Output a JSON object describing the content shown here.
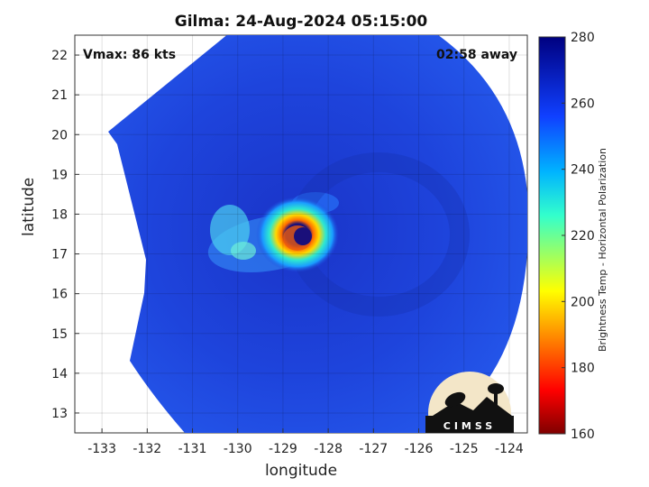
{
  "title": "Gilma: 24-Aug-2024 05:15:00",
  "vmax_label": "Vmax: 86 kts",
  "time_away_label": "02:58 away",
  "logo_text": "CIMSS",
  "colors": {
    "background": "#1c3fe0",
    "eye": "#1a0f7a"
  },
  "chart_data": {
    "type": "heatmap",
    "xlabel": "longitude",
    "ylabel": "latitude",
    "xlim": [
      -133.6,
      -123.6
    ],
    "ylim": [
      12.5,
      22.5
    ],
    "xticks": [
      -133,
      -132,
      -131,
      -130,
      -129,
      -128,
      -127,
      -126,
      -125,
      -124
    ],
    "xtick_labels": [
      "-133",
      "-132",
      "-131",
      "-130",
      "-129",
      "-128",
      "-127",
      "-126",
      "-125",
      "-124"
    ],
    "yticks": [
      13,
      14,
      15,
      16,
      17,
      18,
      19,
      20,
      21,
      22
    ],
    "ytick_labels": [
      "13",
      "14",
      "15",
      "16",
      "17",
      "18",
      "19",
      "20",
      "21",
      "22"
    ],
    "grid": true,
    "colorbar": {
      "label": "Brightness Temp - Horizontal Polarization",
      "range": [
        160,
        280
      ],
      "ticks": [
        160,
        180,
        200,
        220,
        240,
        260,
        280
      ],
      "tick_labels": [
        "160",
        "180",
        "200",
        "220",
        "240",
        "260",
        "280"
      ],
      "colormap": "jet"
    },
    "storm_center": {
      "lon": -128.65,
      "lat": 17.25
    }
  }
}
